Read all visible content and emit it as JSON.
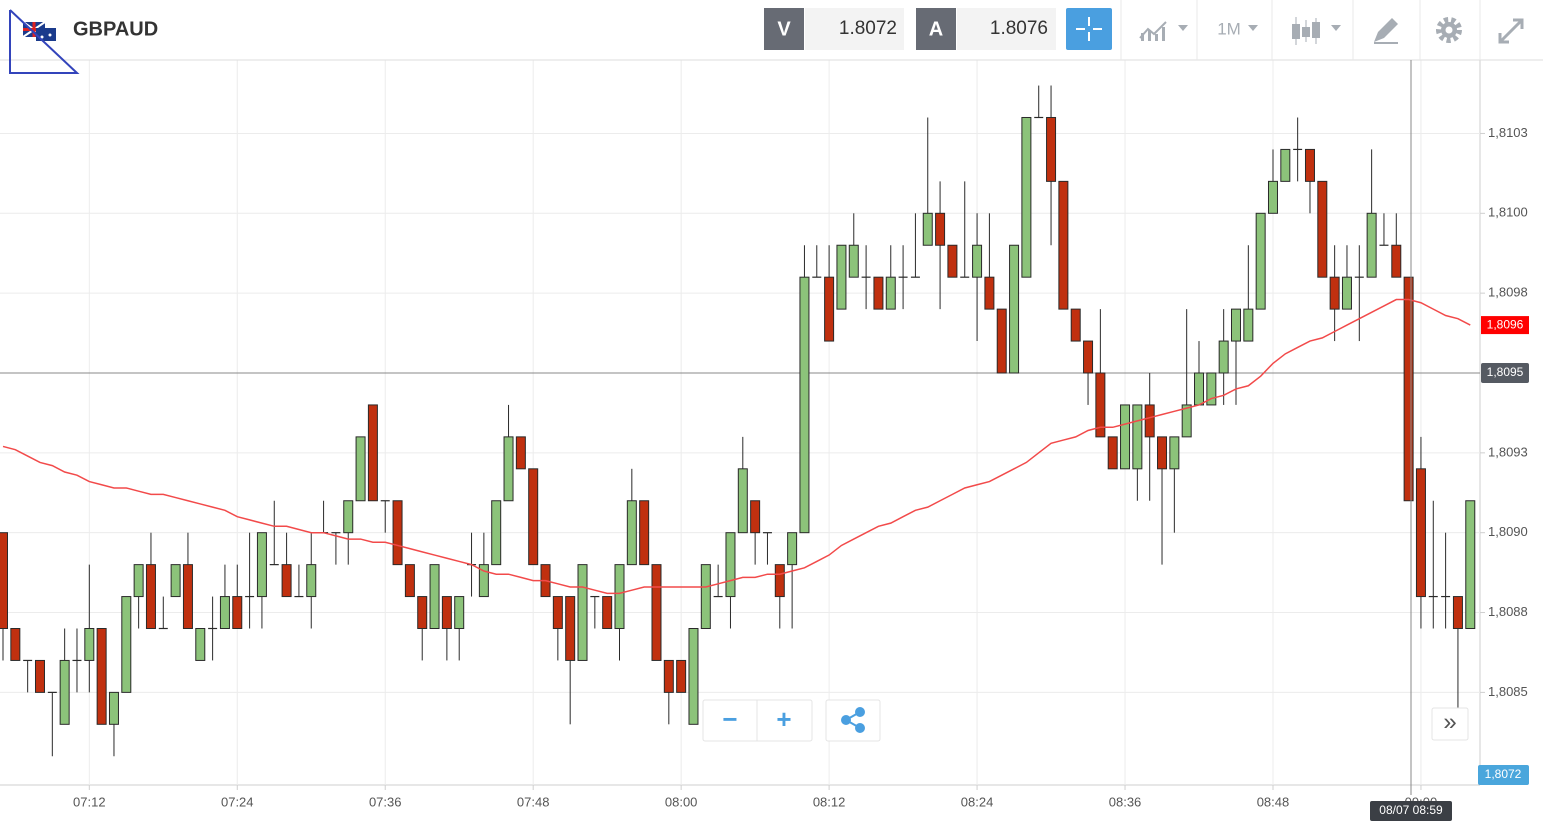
{
  "header": {
    "bid_label": "V",
    "bid": "1.8072",
    "ask_label": "A",
    "ask": "1.8076",
    "timeframe": "1M"
  },
  "controls": {
    "zoom_out": "−",
    "zoom_in": "+",
    "more": "»"
  },
  "chart_data": {
    "type": "candlestick",
    "title": "GBPAUD",
    "categories": [
      null,
      null,
      null,
      null,
      null,
      null,
      null,
      "07:12",
      null,
      null,
      null,
      null,
      null,
      null,
      null,
      null,
      null,
      null,
      null,
      "07:24",
      null,
      null,
      null,
      null,
      null,
      null,
      null,
      null,
      null,
      null,
      null,
      "07:36",
      null,
      null,
      null,
      null,
      null,
      null,
      null,
      null,
      null,
      null,
      null,
      "07:48",
      null,
      null,
      null,
      null,
      null,
      null,
      null,
      null,
      null,
      null,
      null,
      "08:00",
      null,
      null,
      null,
      null,
      null,
      null,
      null,
      null,
      null,
      null,
      null,
      "08:12",
      null,
      null,
      null,
      null,
      null,
      null,
      null,
      null,
      null,
      null,
      null,
      "08:24",
      null,
      null,
      null,
      null,
      null,
      null,
      null,
      null,
      null,
      null,
      null,
      "08:36",
      null,
      null,
      null,
      null,
      null,
      null,
      null,
      null,
      null,
      null,
      null,
      "08:48",
      null,
      null,
      null,
      null,
      null,
      null,
      null,
      null,
      null,
      null,
      null,
      "09:00",
      null,
      null,
      null,
      null
    ],
    "open": [
      1.809,
      1.8087,
      1.8086,
      1.8086,
      1.8085,
      1.8084,
      1.8086,
      1.8086,
      1.8087,
      1.8084,
      1.8085,
      1.8088,
      1.8089,
      1.8087,
      1.8088,
      1.8089,
      1.8086,
      1.8087,
      1.8087,
      1.8088,
      1.8088,
      1.8088,
      1.8089,
      1.8089,
      1.8088,
      1.8088,
      1.809,
      1.809,
      1.809,
      1.8091,
      1.8094,
      1.8091,
      1.8091,
      1.8089,
      1.8088,
      1.8087,
      1.8088,
      1.8087,
      1.8089,
      1.8088,
      1.8089,
      1.8091,
      1.8093,
      1.8092,
      1.8089,
      1.8088,
      1.8088,
      1.8086,
      1.8088,
      1.8088,
      1.8087,
      1.8089,
      1.8091,
      1.8089,
      1.8086,
      1.8086,
      1.8084,
      1.8087,
      1.8088,
      1.8088,
      1.809,
      1.8091,
      1.809,
      1.8089,
      1.8089,
      1.809,
      1.8098,
      1.8098,
      1.8097,
      1.8098,
      1.8098,
      1.8098,
      1.8097,
      1.8098,
      1.8098,
      1.8099,
      1.81,
      1.8099,
      1.8098,
      1.8098,
      1.8098,
      1.8097,
      1.8095,
      1.8098,
      1.8103,
      1.8103,
      1.8101,
      1.8097,
      1.8096,
      1.8095,
      1.8093,
      1.8092,
      1.8092,
      1.8094,
      1.8093,
      1.8092,
      1.8093,
      1.8094,
      1.8094,
      1.8095,
      1.8096,
      1.8096,
      1.8097,
      1.81,
      1.8101,
      1.8102,
      1.8102,
      1.8101,
      1.8098,
      1.8097,
      1.8098,
      1.8098,
      1.8099,
      1.8099,
      1.8098,
      1.8092,
      1.8088,
      1.8088,
      1.8088,
      1.8087
    ],
    "high": [
      1.809,
      1.8087,
      1.8086,
      1.8086,
      1.8085,
      1.8087,
      1.8087,
      1.8089,
      1.8087,
      1.8085,
      1.8088,
      1.8089,
      1.809,
      1.8088,
      1.8089,
      1.809,
      1.8087,
      1.8088,
      1.8089,
      1.8089,
      1.809,
      1.809,
      1.8091,
      1.809,
      1.8089,
      1.809,
      1.8091,
      1.809,
      1.8091,
      1.8093,
      1.8094,
      1.8091,
      1.8091,
      1.8089,
      1.8088,
      1.8089,
      1.8088,
      1.8088,
      1.809,
      1.809,
      1.8091,
      1.8094,
      1.8093,
      1.8092,
      1.8089,
      1.8088,
      1.8088,
      1.8089,
      1.8088,
      1.8088,
      1.8089,
      1.8092,
      1.8091,
      1.8089,
      1.8086,
      1.8086,
      1.8087,
      1.8089,
      1.8089,
      1.809,
      1.8093,
      1.8091,
      1.809,
      1.8089,
      1.809,
      1.8099,
      1.8099,
      1.8099,
      1.8099,
      1.81,
      1.8099,
      1.8098,
      1.8099,
      1.8099,
      1.81,
      1.8103,
      1.8101,
      1.8099,
      1.8101,
      1.81,
      1.81,
      1.8097,
      1.8099,
      1.8103,
      1.8104,
      1.8104,
      1.8101,
      1.8097,
      1.8096,
      1.8097,
      1.8093,
      1.8094,
      1.8094,
      1.8095,
      1.8093,
      1.8093,
      1.8097,
      1.8096,
      1.8095,
      1.8097,
      1.8097,
      1.8099,
      1.81,
      1.8102,
      1.8102,
      1.8103,
      1.8102,
      1.8101,
      1.8099,
      1.8099,
      1.8099,
      1.8102,
      1.81,
      1.81,
      1.8098,
      1.8093,
      1.8091,
      1.809,
      1.8088,
      1.8091
    ],
    "low": [
      1.8086,
      1.8086,
      1.8085,
      1.8085,
      1.8083,
      1.8084,
      1.8085,
      1.8085,
      1.8084,
      1.8083,
      1.8085,
      1.8087,
      1.8087,
      1.8087,
      1.8088,
      1.8087,
      1.8086,
      1.8086,
      1.8087,
      1.8087,
      1.8087,
      1.8087,
      1.8089,
      1.8088,
      1.8088,
      1.8087,
      1.809,
      1.8089,
      1.8089,
      1.8091,
      1.8091,
      1.809,
      1.8089,
      1.8088,
      1.8086,
      1.8087,
      1.8086,
      1.8086,
      1.8088,
      1.8088,
      1.8089,
      1.8091,
      1.8092,
      1.8089,
      1.8088,
      1.8086,
      1.8084,
      1.8086,
      1.8087,
      1.8087,
      1.8086,
      1.8089,
      1.8089,
      1.8086,
      1.8084,
      1.8085,
      1.8084,
      1.8087,
      1.8088,
      1.8087,
      1.809,
      1.8089,
      1.8089,
      1.8087,
      1.8087,
      1.809,
      1.8098,
      1.8096,
      1.8097,
      1.8098,
      1.8097,
      1.8097,
      1.8097,
      1.8097,
      1.8098,
      1.8099,
      1.8097,
      1.8098,
      1.8098,
      1.8096,
      1.8097,
      1.8095,
      1.8095,
      1.8098,
      1.8103,
      1.8099,
      1.8097,
      1.8096,
      1.8094,
      1.8093,
      1.8092,
      1.8092,
      1.8091,
      1.8091,
      1.8089,
      1.809,
      1.8093,
      1.8094,
      1.8094,
      1.8094,
      1.8094,
      1.8096,
      1.8097,
      1.81,
      1.8101,
      1.8101,
      1.81,
      1.8098,
      1.8096,
      1.8097,
      1.8096,
      1.8098,
      1.8099,
      1.8098,
      1.8091,
      1.8087,
      1.8087,
      1.8087,
      1.80845,
      1.8087
    ],
    "close": [
      1.8087,
      1.8086,
      1.8086,
      1.8085,
      1.8085,
      1.8086,
      1.8086,
      1.8087,
      1.8084,
      1.8085,
      1.8088,
      1.8089,
      1.8087,
      1.8087,
      1.8089,
      1.8087,
      1.8087,
      1.8087,
      1.8088,
      1.8087,
      1.8088,
      1.809,
      1.8089,
      1.8088,
      1.8088,
      1.8089,
      1.809,
      1.809,
      1.8091,
      1.8093,
      1.8091,
      1.8091,
      1.8089,
      1.8088,
      1.8087,
      1.8089,
      1.8087,
      1.8088,
      1.8089,
      1.8089,
      1.8091,
      1.8093,
      1.8092,
      1.8089,
      1.8088,
      1.8087,
      1.8086,
      1.8089,
      1.8088,
      1.8087,
      1.8089,
      1.8091,
      1.8089,
      1.8086,
      1.8085,
      1.8085,
      1.8087,
      1.8089,
      1.8088,
      1.809,
      1.8092,
      1.809,
      1.809,
      1.8088,
      1.809,
      1.8098,
      1.8098,
      1.8096,
      1.8099,
      1.8099,
      1.8098,
      1.8097,
      1.8098,
      1.8098,
      1.8098,
      1.81,
      1.8099,
      1.8098,
      1.8098,
      1.8099,
      1.8097,
      1.8095,
      1.8099,
      1.8103,
      1.8103,
      1.8101,
      1.8097,
      1.8096,
      1.8095,
      1.8093,
      1.8092,
      1.8094,
      1.8094,
      1.8093,
      1.8092,
      1.8093,
      1.8094,
      1.8095,
      1.8095,
      1.8096,
      1.8097,
      1.8097,
      1.81,
      1.8101,
      1.8102,
      1.8102,
      1.8101,
      1.8098,
      1.8097,
      1.8098,
      1.8098,
      1.81,
      1.8099,
      1.8098,
      1.8091,
      1.8088,
      1.8088,
      1.8088,
      1.8087,
      1.8091
    ],
    "up_color": "#8cc37a",
    "down_color": "#c0300f",
    "moving_average": {
      "color": "#f24a4a",
      "last_label": "1,8096",
      "values": [
        1.80927,
        1.80926,
        1.80924,
        1.80922,
        1.80921,
        1.80919,
        1.80918,
        1.80916,
        1.80915,
        1.80914,
        1.80914,
        1.80913,
        1.80912,
        1.80912,
        1.80911,
        1.8091,
        1.80909,
        1.80908,
        1.80907,
        1.80905,
        1.80904,
        1.80903,
        1.80902,
        1.80902,
        1.80901,
        1.809,
        1.809,
        1.80899,
        1.80898,
        1.80898,
        1.80897,
        1.80897,
        1.80896,
        1.80895,
        1.80894,
        1.80893,
        1.80892,
        1.80891,
        1.8089,
        1.80888,
        1.80887,
        1.80887,
        1.80886,
        1.80885,
        1.80885,
        1.80884,
        1.80883,
        1.80883,
        1.80882,
        1.80881,
        1.80881,
        1.80882,
        1.80883,
        1.80883,
        1.80883,
        1.80883,
        1.80883,
        1.80883,
        1.80884,
        1.80885,
        1.80886,
        1.80886,
        1.80887,
        1.80887,
        1.80888,
        1.80889,
        1.80891,
        1.80893,
        1.80896,
        1.80898,
        1.809,
        1.80902,
        1.80903,
        1.80905,
        1.80907,
        1.80908,
        1.8091,
        1.80912,
        1.80914,
        1.80915,
        1.80916,
        1.80918,
        1.8092,
        1.80922,
        1.80925,
        1.80928,
        1.80929,
        1.8093,
        1.80932,
        1.80933,
        1.80933,
        1.80934,
        1.80935,
        1.80936,
        1.80937,
        1.80938,
        1.80939,
        1.8094,
        1.80942,
        1.80943,
        1.80945,
        1.80946,
        1.80949,
        1.80953,
        1.80956,
        1.80958,
        1.8096,
        1.80961,
        1.80963,
        1.80965,
        1.80967,
        1.80969,
        1.80971,
        1.80973,
        1.80973,
        1.80972,
        1.8097,
        1.80968,
        1.80967,
        1.80965
      ]
    },
    "ylim": [
      1.80821,
      1.81048
    ],
    "yticks": [
      {
        "value": 1.81025,
        "label": "1,8103"
      },
      {
        "value": 1.81,
        "label": "1,8100"
      },
      {
        "value": 1.80975,
        "label": "1,8098"
      },
      {
        "value": 1.80925,
        "label": "1,8093"
      },
      {
        "value": 1.809,
        "label": "1,8090"
      },
      {
        "value": 1.80875,
        "label": "1,8088"
      },
      {
        "value": 1.8085,
        "label": "1,8085"
      }
    ],
    "grid": true,
    "crosshair": {
      "value": 1.8095,
      "label": "1,8095",
      "time_label": "08/07 08:59"
    },
    "bid_marker": "1,8072"
  }
}
